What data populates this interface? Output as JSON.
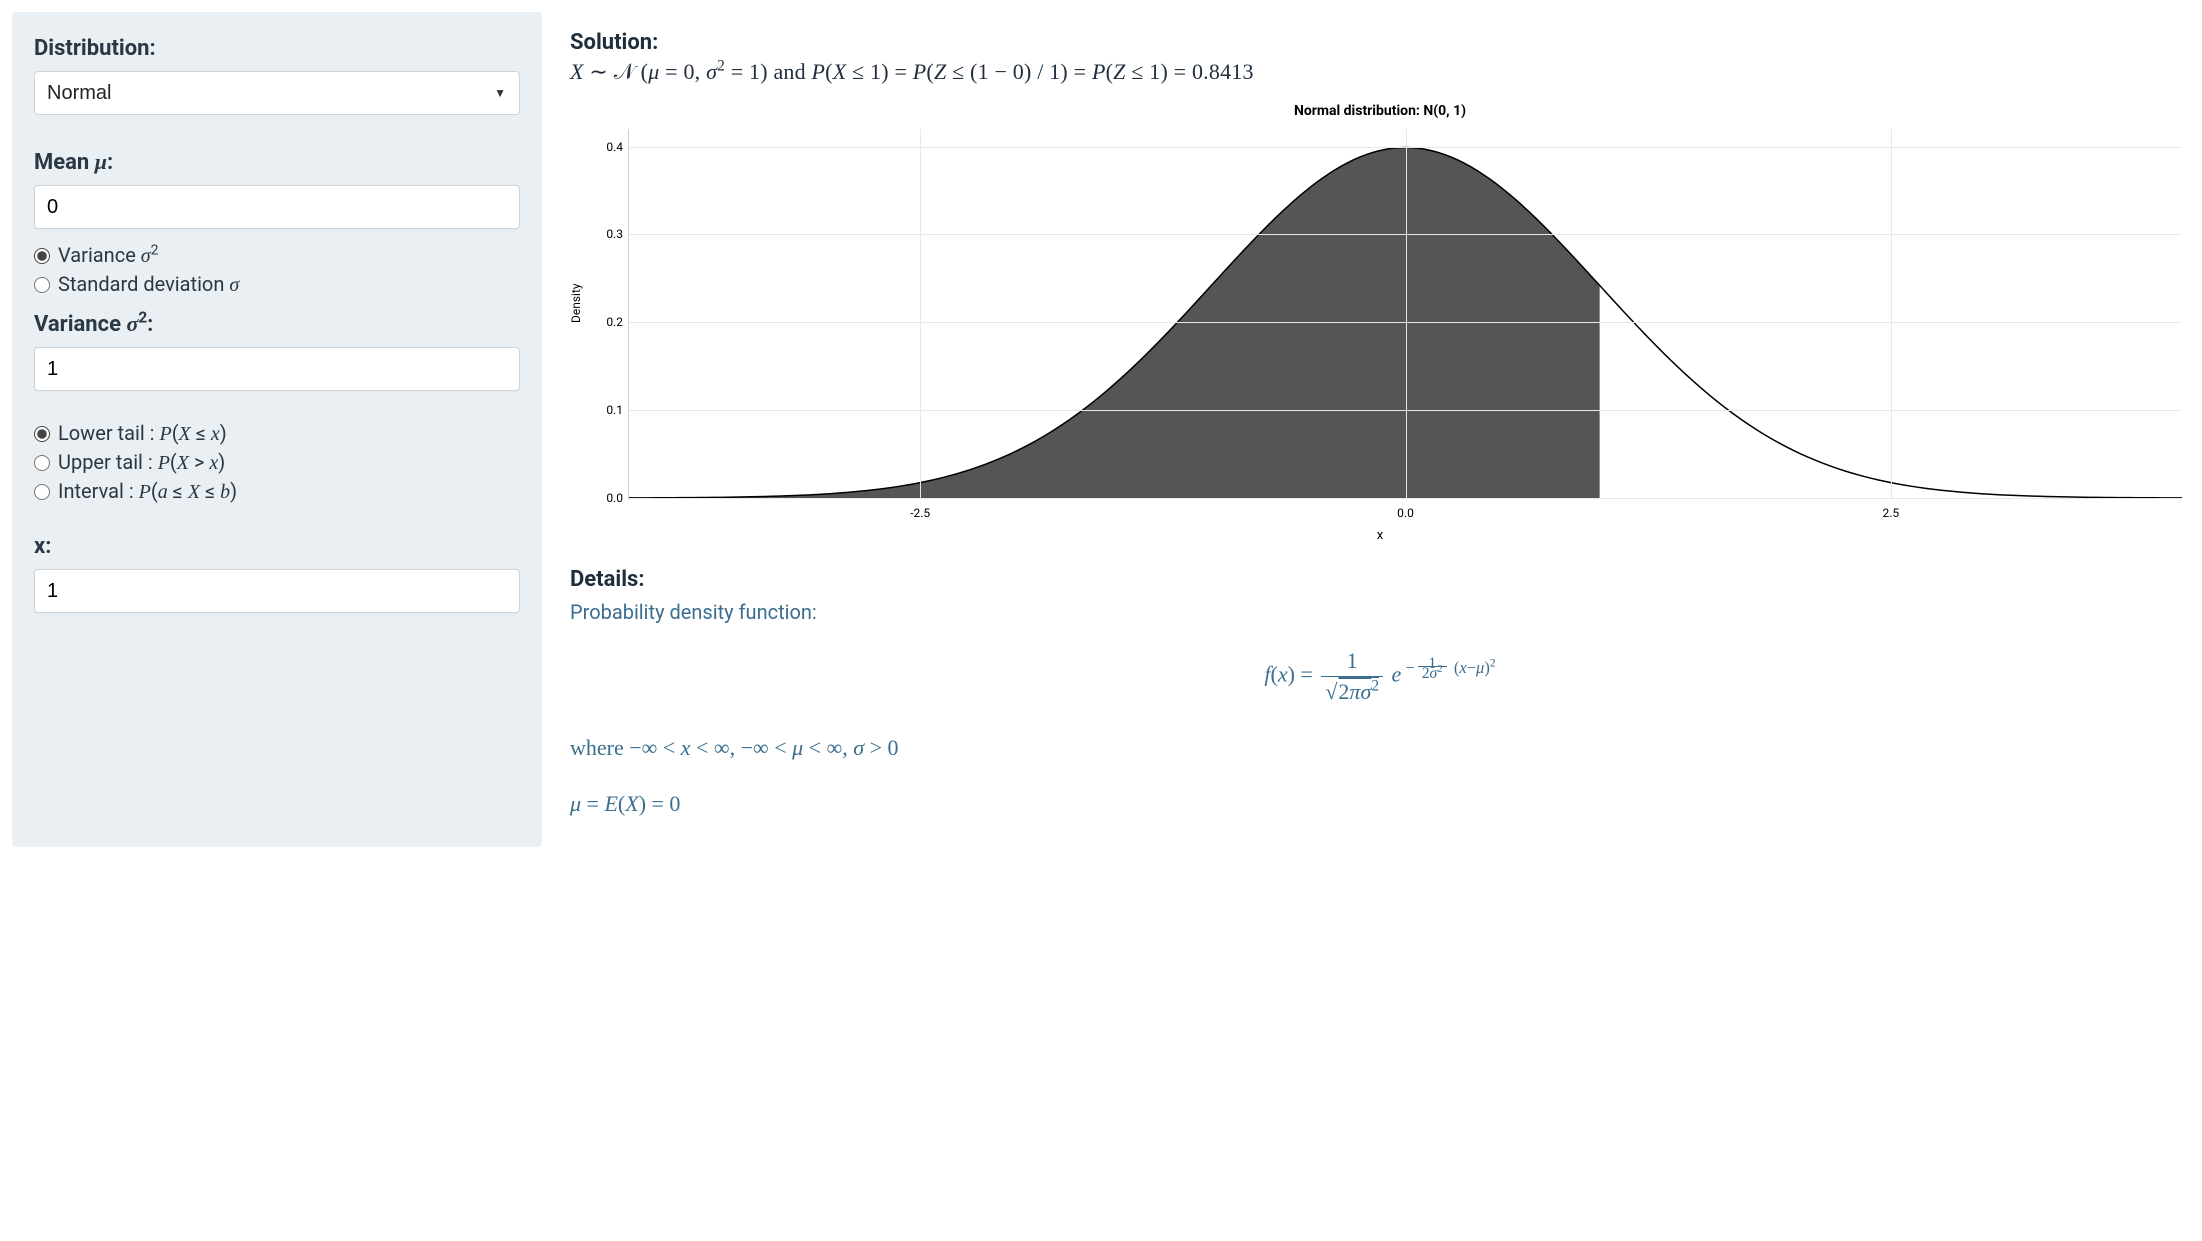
{
  "sidebar": {
    "distribution_label": "Distribution:",
    "distribution_value": "Normal",
    "mean_label": "Mean μ:",
    "mean_value": "0",
    "spread_radio": {
      "variance": "Variance σ²",
      "stddev": "Standard deviation σ",
      "selected": "variance"
    },
    "variance_label": "Variance σ²:",
    "variance_value": "1",
    "tail_radio": {
      "lower": "Lower tail : P(X ≤ x)",
      "upper": "Upper tail : P(X > x)",
      "interval": "Interval : P(a ≤ X ≤ b)",
      "selected": "lower"
    },
    "x_label": "x:",
    "x_value": "1"
  },
  "solution": {
    "heading": "Solution:",
    "line_html": "X ∼ 𝒩 (μ = 0, σ² = 1) and P(X ≤ 1) = P(Z ≤ (1 − 0) / 1) = P(Z ≤ 1) = 0.8413"
  },
  "chart": {
    "title": "Normal distribution: N(0, 1)",
    "ylabel": "Density",
    "xlabel": "x",
    "xlim": [
      -4,
      4
    ],
    "ylim": [
      0.0,
      0.42
    ],
    "yticks": [
      0.0,
      0.1,
      0.2,
      0.3,
      0.4
    ],
    "xticks": [
      -2.5,
      0.0,
      2.5
    ],
    "mu": 0,
    "sigma": 1,
    "fill_to": 1,
    "fill_color": "#555555",
    "line_color": "#000000",
    "grid_color": "#e8e8e8",
    "background_color": "#ffffff",
    "line_width": 1.5
  },
  "details": {
    "heading": "Details:",
    "pdf_label": "Probability density function:",
    "pdf_html": "f(x) = (1 / √(2πσ²)) · e^{ −(1/(2σ²))(x−μ)² }",
    "domain_html": "where −∞ < x < ∞, −∞ < μ < ∞, σ > 0",
    "mean_html": "μ = E(X) = 0"
  },
  "colors": {
    "sidebar_bg": "#e9eff2",
    "text_dark": "#2a3744",
    "text_blue": "#3b6e8f"
  }
}
